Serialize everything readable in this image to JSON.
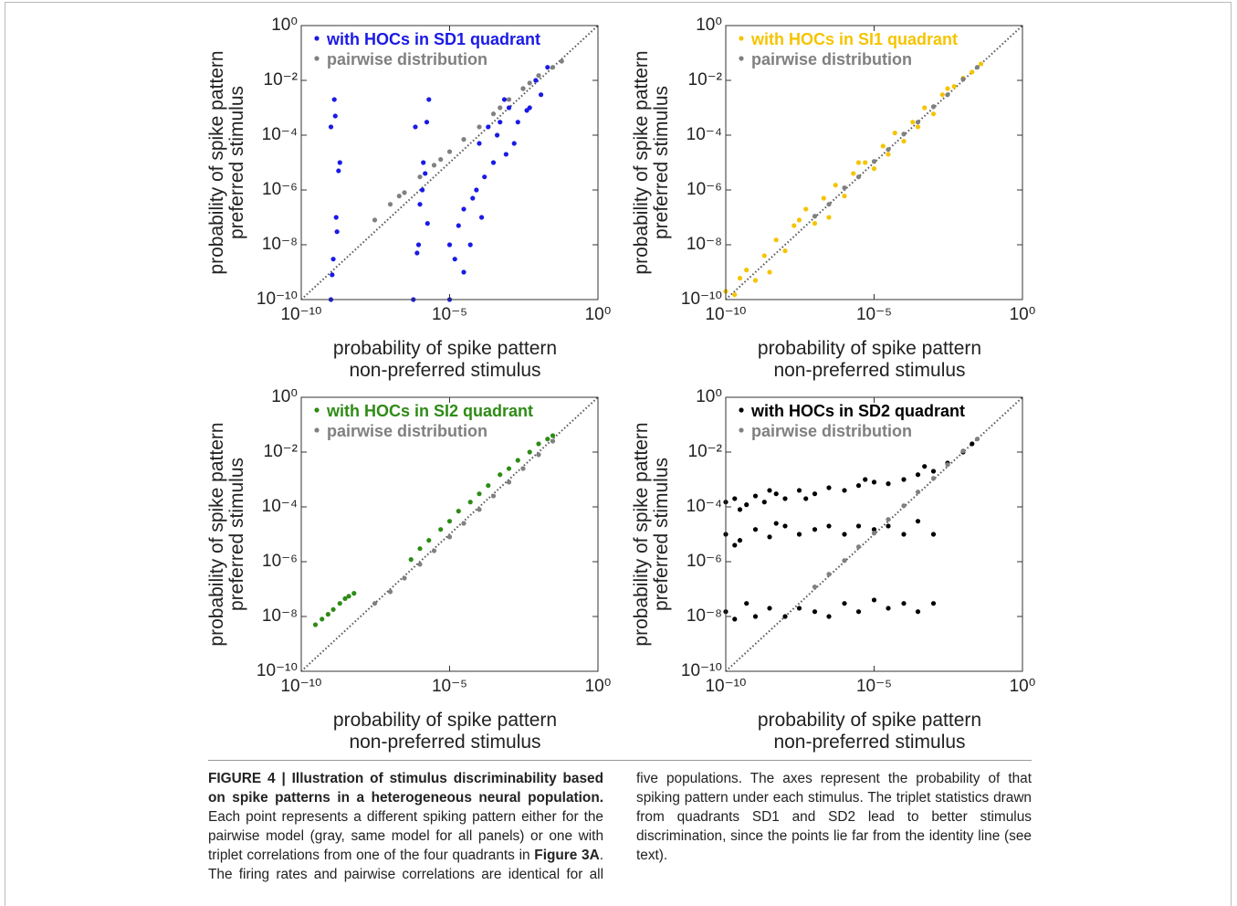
{
  "chart_data": [
    {
      "type": "scatter",
      "xscale": "log",
      "yscale": "log",
      "legend": "upper left",
      "xlabel": [
        "probability of spike pattern",
        "non-preferred stimulus"
      ],
      "ylabel": [
        "probability of spike pattern",
        "preferred stimulus"
      ],
      "xlim": [
        1e-10,
        1
      ],
      "ylim": [
        1e-10,
        1
      ],
      "xticks": [
        {
          "value": 1e-10,
          "label": "10⁻¹⁰"
        },
        {
          "value": 1e-05,
          "label": "10⁻⁵"
        },
        {
          "value": 1,
          "label": "10⁰"
        }
      ],
      "yticks": [
        {
          "value": 1e-10,
          "label": "10⁻¹⁰"
        },
        {
          "value": 1e-08,
          "label": "10⁻⁸"
        },
        {
          "value": 1e-06,
          "label": "10⁻⁶"
        },
        {
          "value": 0.0001,
          "label": "10⁻⁴"
        },
        {
          "value": 0.01,
          "label": "10⁻²"
        },
        {
          "value": 1,
          "label": "10⁰"
        }
      ],
      "series": [
        {
          "name": "with HOCs in SD1 quadrant",
          "color": "#1a1ae6",
          "x": [
            1e-09,
            1.2e-09,
            1.5e-09,
            1.8e-09,
            1e-09,
            1.3e-09,
            2e-09,
            1.6e-09,
            1.1e-09,
            1.4e-09,
            6e-07,
            8e-07,
            1e-06,
            1.3e-06,
            1.7e-06,
            2e-06,
            9e-07,
            1.5e-06,
            7e-07,
            1.2e-06,
            1.8e-06,
            1e-05,
            1.5e-05,
            2e-05,
            3e-05,
            5e-05,
            8e-05,
            0.0001,
            0.00015,
            0.0002,
            0.0003,
            0.0005,
            0.0008,
            0.001,
            0.002,
            0.003,
            0.005,
            0.008,
            0.012,
            0.02,
            1e-05,
            3e-05,
            6e-05,
            0.00012,
            0.0004,
            0.0007,
            0.0015,
            0.004
          ],
          "values": [
            1e-10,
            3e-09,
            1e-07,
            5e-06,
            0.0002,
            0.002,
            1e-05,
            3e-08,
            8e-10,
            0.0005,
            1e-10,
            5e-09,
            3e-07,
            1e-05,
            0.0003,
            0.002,
            1e-08,
            4e-06,
            0.0002,
            1e-06,
            6e-08,
            1e-10,
            3e-09,
            5e-08,
            2e-07,
            1e-08,
            1e-06,
            5e-05,
            3e-06,
            0.0002,
            1e-05,
            0.0003,
            2e-05,
            0.001,
            0.0003,
            0.005,
            0.001,
            0.01,
            0.003,
            0.03,
            1e-08,
            1e-09,
            5e-07,
            1e-07,
            0.0001,
            0.002,
            5e-05,
            0.0008
          ]
        },
        {
          "name": "pairwise distribution",
          "color": "#808080",
          "x": [
            3e-08,
            1e-07,
            3e-07,
            1e-06,
            3e-06,
            1e-05,
            3e-05,
            0.0001,
            0.0003,
            0.001,
            0.003,
            0.01,
            0.03,
            0.06,
            2e-07,
            5e-06,
            0.0005,
            0.005
          ],
          "values": [
            8e-08,
            3e-07,
            8e-07,
            3e-06,
            8e-06,
            2.5e-05,
            7e-05,
            0.0002,
            0.0006,
            0.002,
            0.005,
            0.015,
            0.03,
            0.05,
            6e-07,
            1.3e-05,
            0.001,
            0.008
          ]
        }
      ]
    },
    {
      "type": "scatter",
      "xscale": "log",
      "yscale": "log",
      "legend": "upper left",
      "xlabel": [
        "probability of spike pattern",
        "non-preferred stimulus"
      ],
      "ylabel": [
        "probability of spike pattern",
        "preferred stimulus"
      ],
      "xlim": [
        1e-10,
        1
      ],
      "ylim": [
        1e-10,
        1
      ],
      "xticks": [
        {
          "value": 1e-10,
          "label": "10⁻¹⁰"
        },
        {
          "value": 1e-05,
          "label": "10⁻⁵"
        },
        {
          "value": 1,
          "label": "10⁰"
        }
      ],
      "yticks": [
        {
          "value": 1e-10,
          "label": "10⁻¹⁰"
        },
        {
          "value": 1e-08,
          "label": "10⁻⁸"
        },
        {
          "value": 1e-06,
          "label": "10⁻⁶"
        },
        {
          "value": 0.0001,
          "label": "10⁻⁴"
        },
        {
          "value": 0.01,
          "label": "10⁻²"
        },
        {
          "value": 1,
          "label": "10⁰"
        }
      ],
      "series": [
        {
          "name": "with HOCs in SI1 quadrant",
          "color": "#f5c400",
          "x": [
            1e-10,
            2e-10,
            5e-10,
            1e-09,
            2e-09,
            5e-09,
            1e-08,
            2e-08,
            5e-08,
            1e-07,
            2e-07,
            5e-07,
            1e-06,
            2e-06,
            5e-06,
            1e-05,
            2e-05,
            5e-05,
            0.0001,
            0.0002,
            0.0005,
            0.001,
            0.002,
            0.005,
            0.01,
            0.02,
            0.04,
            3e-10,
            3e-09,
            3e-08,
            3e-07,
            3e-06,
            3e-05,
            0.0003,
            0.003
          ],
          "values": [
            2e-10,
            1.5e-10,
            1.2e-09,
            5e-10,
            4e-09,
            1.5e-08,
            6e-09,
            5e-08,
            2e-07,
            6e-08,
            5e-07,
            1.5e-06,
            6e-07,
            4e-06,
            1e-05,
            6e-06,
            4e-05,
            0.00012,
            6e-05,
            0.0003,
            0.001,
            0.0006,
            0.003,
            0.006,
            0.012,
            0.02,
            0.04,
            6e-10,
            1e-09,
            8e-08,
            1e-07,
            1e-05,
            2e-05,
            0.0002,
            0.005
          ]
        },
        {
          "name": "pairwise distribution",
          "color": "#808080",
          "x": [
            1e-07,
            3e-07,
            1e-06,
            3e-06,
            1e-05,
            3e-05,
            0.0001,
            0.0003,
            0.001,
            0.003,
            0.01,
            0.03
          ],
          "values": [
            1.1e-07,
            3e-07,
            1.2e-06,
            3e-06,
            1.1e-05,
            3e-05,
            0.00011,
            0.0003,
            0.0011,
            0.003,
            0.011,
            0.03
          ]
        }
      ]
    },
    {
      "type": "scatter",
      "xscale": "log",
      "yscale": "log",
      "legend": "upper left",
      "xlabel": [
        "probability of spike pattern",
        "non-preferred stimulus"
      ],
      "ylabel": [
        "probability of spike pattern",
        "preferred stimulus"
      ],
      "xlim": [
        1e-10,
        1
      ],
      "ylim": [
        1e-10,
        1
      ],
      "xticks": [
        {
          "value": 1e-10,
          "label": "10⁻¹⁰"
        },
        {
          "value": 1e-05,
          "label": "10⁻⁵"
        },
        {
          "value": 1,
          "label": "10⁰"
        }
      ],
      "yticks": [
        {
          "value": 1e-10,
          "label": "10⁻¹⁰"
        },
        {
          "value": 1e-08,
          "label": "10⁻⁸"
        },
        {
          "value": 1e-06,
          "label": "10⁻⁶"
        },
        {
          "value": 0.0001,
          "label": "10⁻⁴"
        },
        {
          "value": 0.01,
          "label": "10⁻²"
        },
        {
          "value": 1,
          "label": "10⁰"
        }
      ],
      "series": [
        {
          "name": "with HOCs in SI2 quadrant",
          "color": "#2e8b16",
          "x": [
            3e-10,
            5e-10,
            8e-10,
            1.2e-09,
            2e-09,
            3e-09,
            4e-09,
            6e-09,
            5e-07,
            1e-06,
            2e-06,
            5e-06,
            1e-05,
            2e-05,
            5e-05,
            0.0001,
            0.0002,
            0.0005,
            0.001,
            0.002,
            0.005,
            0.01,
            0.02,
            0.03
          ],
          "values": [
            5e-09,
            8e-09,
            1.2e-08,
            1.8e-08,
            3e-08,
            4.5e-08,
            5.5e-08,
            7e-08,
            1.2e-06,
            3e-06,
            6e-06,
            1.5e-05,
            3e-05,
            7e-05,
            0.00015,
            0.0003,
            0.0006,
            0.0015,
            0.0025,
            0.005,
            0.01,
            0.02,
            0.03,
            0.04
          ]
        },
        {
          "name": "pairwise distribution",
          "color": "#808080",
          "x": [
            3e-08,
            1e-07,
            3e-07,
            1e-06,
            3e-06,
            1e-05,
            3e-05,
            0.0001,
            0.0003,
            0.001,
            0.003,
            0.01,
            0.03
          ],
          "values": [
            3e-08,
            8e-08,
            2.5e-07,
            8e-07,
            2.5e-06,
            8e-06,
            2.5e-05,
            8e-05,
            0.00025,
            0.0008,
            0.0025,
            0.008,
            0.025
          ]
        }
      ]
    },
    {
      "type": "scatter",
      "xscale": "log",
      "yscale": "log",
      "legend": "upper left",
      "xlabel": [
        "probability of spike pattern",
        "non-preferred stimulus"
      ],
      "ylabel": [
        "probability of spike pattern",
        "preferred stimulus"
      ],
      "xlim": [
        1e-10,
        1
      ],
      "ylim": [
        1e-10,
        1
      ],
      "xticks": [
        {
          "value": 1e-10,
          "label": "10⁻¹⁰"
        },
        {
          "value": 1e-05,
          "label": "10⁻⁵"
        },
        {
          "value": 1,
          "label": "10⁰"
        }
      ],
      "yticks": [
        {
          "value": 1e-10,
          "label": "10⁻¹⁰"
        },
        {
          "value": 1e-08,
          "label": "10⁻⁸"
        },
        {
          "value": 1e-06,
          "label": "10⁻⁶"
        },
        {
          "value": 0.0001,
          "label": "10⁻⁴"
        },
        {
          "value": 0.01,
          "label": "10⁻²"
        },
        {
          "value": 1,
          "label": "10⁰"
        }
      ],
      "series": [
        {
          "name": "with HOCs in SD2 quadrant",
          "color": "#000000",
          "x": [
            1e-10,
            2e-10,
            5e-10,
            1e-09,
            2e-09,
            5e-09,
            1e-08,
            3e-08,
            1e-07,
            3e-07,
            1e-06,
            3e-06,
            1e-05,
            3e-05,
            0.0001,
            0.0003,
            0.001,
            0.003,
            0.01,
            0.02,
            3e-10,
            3e-09,
            5e-08,
            5e-06,
            0.0005,
            1e-10,
            3e-10,
            1e-09,
            3e-09,
            1e-08,
            3e-08,
            1e-07,
            3e-07,
            1e-06,
            3e-06,
            1e-05,
            3e-05,
            0.0001,
            0.0003,
            0.001,
            2e-10,
            5e-09,
            1e-10,
            2e-10,
            5e-10,
            1e-09,
            3e-09,
            1e-08,
            3e-08,
            1e-07,
            3e-07,
            1e-06,
            3e-06,
            1e-05,
            3e-05,
            0.0001,
            0.0003,
            0.001
          ],
          "values": [
            0.00015,
            0.0002,
            0.00012,
            0.00025,
            0.00015,
            0.0003,
            0.0002,
            0.0004,
            0.0003,
            0.0005,
            0.0004,
            0.0006,
            0.0008,
            0.0007,
            0.001,
            0.0015,
            0.002,
            0.004,
            0.01,
            0.02,
            8e-05,
            0.0004,
            0.0002,
            0.001,
            0.003,
            1e-05,
            6e-06,
            1.5e-05,
            8e-06,
            2e-05,
            1e-05,
            1.5e-05,
            2e-05,
            1e-05,
            2e-05,
            1.5e-05,
            2e-05,
            1e-05,
            3e-05,
            1e-05,
            4e-06,
            2.5e-05,
            1.5e-08,
            8e-09,
            3e-08,
            1e-08,
            2e-08,
            1e-08,
            2e-08,
            1.5e-08,
            1e-08,
            3e-08,
            1.5e-08,
            4e-08,
            2e-08,
            3e-08,
            1.5e-08,
            3e-08
          ]
        },
        {
          "name": "pairwise distribution",
          "color": "#808080",
          "x": [
            1e-07,
            3e-07,
            1e-06,
            3e-06,
            1e-05,
            3e-05,
            0.0001,
            0.0003,
            0.001,
            0.003,
            0.01,
            0.03
          ],
          "values": [
            1.2e-07,
            3.5e-07,
            1.1e-06,
            3.5e-06,
            1.1e-05,
            3.5e-05,
            0.00011,
            0.00035,
            0.0011,
            0.0035,
            0.011,
            0.03
          ]
        }
      ]
    }
  ],
  "caption": {
    "title": "FIGURE 4 | Illustration of stimulus discriminability based on spike patterns in a heterogeneous neural population.",
    "body": [
      " Each point represents a different spiking pattern either for the pairwise model (gray, same model for all panels) or one with triplet correlations from one of the four quadrants in ",
      "Figure 3A",
      ". The firing rates and pairwise correlations are identical for all five populations. The axes represent the probability of that spiking pattern under each stimulus. The triplet statistics drawn from quadrants SD1 and SD2 lead to better stimulus discrimination, since the points lie far from the identity line (see text)."
    ]
  }
}
